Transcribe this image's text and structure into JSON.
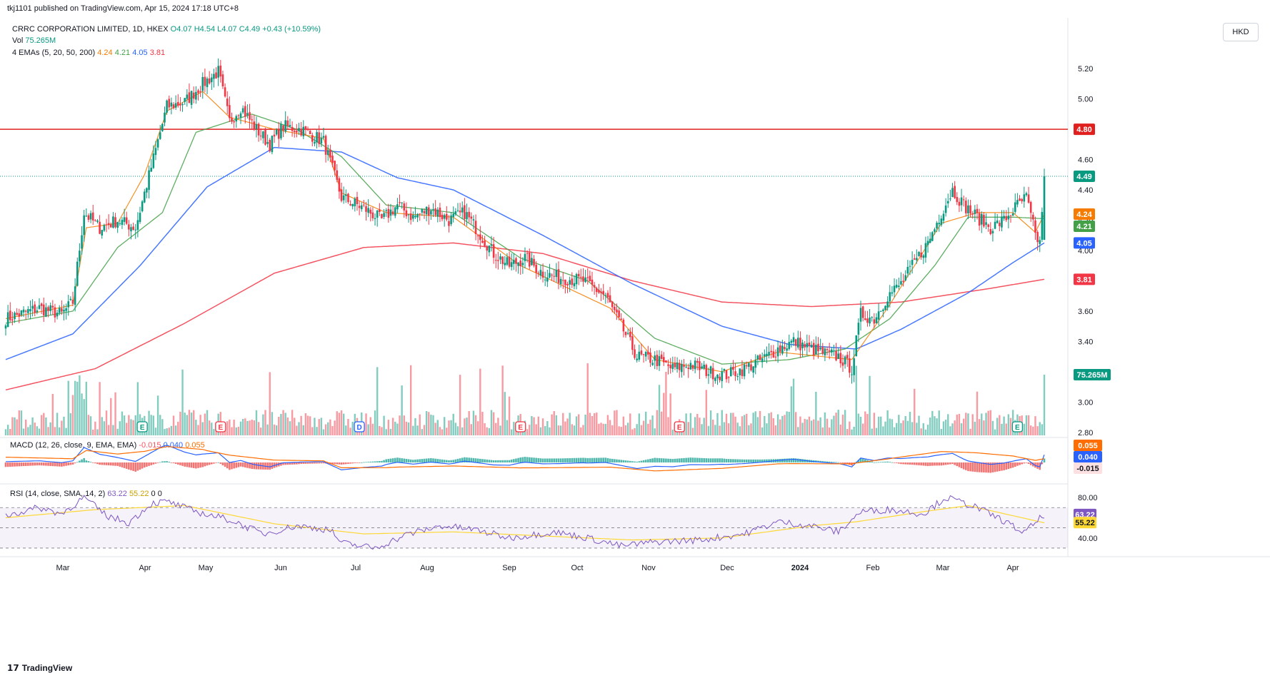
{
  "header": {
    "published": "tkj1101 published on TradingView.com, Apr 15, 2024 17:18 UTC+8",
    "symbol": "CRRC CORPORATION LIMITED, 1D, HKEX",
    "open": "O4.07",
    "high": "H4.54",
    "low": "L4.07",
    "close": "C4.49",
    "change": "+0.43 (+10.59%)",
    "vol_label": "Vol",
    "vol_value": "75.265M",
    "ema_label": "4 EMAs (5, 20, 50, 200)",
    "ema5": "4.24",
    "ema20": "4.21",
    "ema50": "4.05",
    "ema200": "3.81"
  },
  "currency_button": "HKD",
  "macd_label": {
    "title": "MACD (12, 26, close, 9, EMA, EMA)",
    "hist": "-0.015",
    "macd": "0.040",
    "signal": "0.055"
  },
  "rsi_label": {
    "title": "RSI (14, close, SMA, 14, 2)",
    "rsi": "63.22",
    "ma": "55.22",
    "extra": "0  0"
  },
  "footer": {
    "brand": "TradingView"
  },
  "colors": {
    "up": "#089981",
    "down": "#f23645",
    "ema5": "#f57c00",
    "ema20": "#43a047",
    "ema50": "#2962ff",
    "ema200": "#f23645",
    "resistance": "#e0201f",
    "rsi": "#7e57c2",
    "rsi_ma": "#fdd835",
    "macd_line": "#2962ff",
    "signal_line": "#ff6d00"
  },
  "chart_data": {
    "type": "candlestick",
    "price_axis": {
      "ticks": [
        "5.20",
        "5.00",
        "4.80",
        "4.60",
        "4.40",
        "4.20",
        "4.00",
        "3.80",
        "3.60",
        "3.40",
        "3.20",
        "3.00",
        "2.80"
      ],
      "range": [
        2.78,
        5.3
      ]
    },
    "time_axis": {
      "ticks": [
        "Mar",
        "Apr",
        "May",
        "Jun",
        "Jul",
        "Aug",
        "Sep",
        "Oct",
        "Nov",
        "Dec",
        "2024",
        "Feb",
        "Mar",
        "Apr"
      ]
    },
    "horizontal_levels": [
      {
        "value": 4.8,
        "label": "4.80"
      }
    ],
    "last_price": {
      "value": 4.49,
      "label": "4.49"
    },
    "ema_values": {
      "ema5": 4.24,
      "ema20": 4.21,
      "ema50": 4.05,
      "ema200": 3.81
    },
    "price_labels": [
      "4.80",
      "4.49",
      "4.24",
      "4.21",
      "4.05",
      "3.81"
    ],
    "volume_last": "75.265M",
    "price_anchors": [
      [
        0,
        3.55
      ],
      [
        15,
        3.62
      ],
      [
        25,
        3.58
      ],
      [
        30,
        3.66
      ],
      [
        35,
        4.25
      ],
      [
        42,
        4.15
      ],
      [
        50,
        4.2
      ],
      [
        58,
        4.15
      ],
      [
        65,
        4.55
      ],
      [
        72,
        4.95
      ],
      [
        80,
        4.98
      ],
      [
        88,
        5.1
      ],
      [
        95,
        5.18
      ],
      [
        100,
        4.85
      ],
      [
        105,
        4.95
      ],
      [
        112,
        4.8
      ],
      [
        118,
        4.7
      ],
      [
        124,
        4.82
      ],
      [
        132,
        4.8
      ],
      [
        142,
        4.72
      ],
      [
        150,
        4.35
      ],
      [
        160,
        4.28
      ],
      [
        168,
        4.2
      ],
      [
        175,
        4.3
      ],
      [
        182,
        4.22
      ],
      [
        190,
        4.28
      ],
      [
        198,
        4.2
      ],
      [
        205,
        4.25
      ],
      [
        210,
        4.15
      ],
      [
        218,
        3.98
      ],
      [
        225,
        3.9
      ],
      [
        232,
        3.95
      ],
      [
        240,
        3.85
      ],
      [
        248,
        3.82
      ],
      [
        258,
        3.8
      ],
      [
        268,
        3.7
      ],
      [
        275,
        3.5
      ],
      [
        282,
        3.3
      ],
      [
        290,
        3.28
      ],
      [
        298,
        3.22
      ],
      [
        306,
        3.25
      ],
      [
        314,
        3.2
      ],
      [
        322,
        3.18
      ],
      [
        330,
        3.22
      ],
      [
        338,
        3.28
      ],
      [
        345,
        3.35
      ],
      [
        352,
        3.4
      ],
      [
        360,
        3.35
      ],
      [
        366,
        3.32
      ],
      [
        372,
        3.3
      ],
      [
        378,
        3.22
      ],
      [
        382,
        3.58
      ],
      [
        388,
        3.55
      ],
      [
        394,
        3.7
      ],
      [
        400,
        3.78
      ],
      [
        406,
        3.92
      ],
      [
        412,
        4.05
      ],
      [
        418,
        4.25
      ],
      [
        423,
        4.4
      ],
      [
        428,
        4.3
      ],
      [
        434,
        4.22
      ],
      [
        440,
        4.15
      ],
      [
        446,
        4.2
      ],
      [
        452,
        4.3
      ],
      [
        456,
        4.35
      ],
      [
        460,
        4.1
      ],
      [
        462,
        4.05
      ],
      [
        464,
        4.49
      ]
    ],
    "ema_anchors": {
      "ema200": [
        [
          0,
          3.08
        ],
        [
          40,
          3.22
        ],
        [
          80,
          3.52
        ],
        [
          120,
          3.85
        ],
        [
          160,
          4.02
        ],
        [
          200,
          4.05
        ],
        [
          240,
          3.98
        ],
        [
          280,
          3.8
        ],
        [
          320,
          3.66
        ],
        [
          360,
          3.63
        ],
        [
          400,
          3.66
        ],
        [
          440,
          3.75
        ],
        [
          464,
          3.81
        ]
      ],
      "ema50": [
        [
          0,
          3.28
        ],
        [
          30,
          3.45
        ],
        [
          60,
          3.9
        ],
        [
          90,
          4.42
        ],
        [
          120,
          4.68
        ],
        [
          150,
          4.65
        ],
        [
          175,
          4.48
        ],
        [
          200,
          4.4
        ],
        [
          240,
          4.1
        ],
        [
          280,
          3.78
        ],
        [
          320,
          3.5
        ],
        [
          350,
          3.38
        ],
        [
          380,
          3.35
        ],
        [
          400,
          3.48
        ],
        [
          430,
          3.72
        ],
        [
          450,
          3.92
        ],
        [
          464,
          4.05
        ]
      ],
      "ema20": [
        [
          0,
          3.52
        ],
        [
          30,
          3.6
        ],
        [
          50,
          4.02
        ],
        [
          70,
          4.25
        ],
        [
          85,
          4.78
        ],
        [
          110,
          4.9
        ],
        [
          130,
          4.8
        ],
        [
          150,
          4.62
        ],
        [
          170,
          4.3
        ],
        [
          200,
          4.25
        ],
        [
          230,
          3.95
        ],
        [
          260,
          3.8
        ],
        [
          290,
          3.42
        ],
        [
          320,
          3.25
        ],
        [
          350,
          3.28
        ],
        [
          375,
          3.35
        ],
        [
          395,
          3.55
        ],
        [
          415,
          3.9
        ],
        [
          430,
          4.22
        ],
        [
          450,
          4.22
        ],
        [
          464,
          4.21
        ]
      ],
      "ema5": [
        [
          0,
          3.55
        ],
        [
          30,
          3.64
        ],
        [
          36,
          4.15
        ],
        [
          50,
          4.18
        ],
        [
          62,
          4.5
        ],
        [
          72,
          4.92
        ],
        [
          88,
          5.05
        ],
        [
          100,
          4.88
        ],
        [
          120,
          4.8
        ],
        [
          142,
          4.74
        ],
        [
          150,
          4.38
        ],
        [
          170,
          4.25
        ],
        [
          200,
          4.22
        ],
        [
          230,
          3.9
        ],
        [
          270,
          3.62
        ],
        [
          290,
          3.28
        ],
        [
          320,
          3.2
        ],
        [
          345,
          3.33
        ],
        [
          378,
          3.28
        ],
        [
          394,
          3.62
        ],
        [
          418,
          4.18
        ],
        [
          434,
          4.25
        ],
        [
          450,
          4.25
        ],
        [
          460,
          4.12
        ],
        [
          464,
          4.24
        ]
      ]
    },
    "macd_levels": {
      "macd": 0.04,
      "signal": 0.055,
      "hist": -0.015
    },
    "rsi_axis": {
      "ticks": [
        "80.00",
        "40.00"
      ],
      "band": [
        30,
        70
      ]
    },
    "rsi_last": 63.22,
    "rsi_ma_last": 55.22,
    "rsi_anchors": [
      [
        0,
        62
      ],
      [
        15,
        70
      ],
      [
        25,
        64
      ],
      [
        35,
        80
      ],
      [
        45,
        62
      ],
      [
        55,
        55
      ],
      [
        65,
        74
      ],
      [
        72,
        76
      ],
      [
        85,
        66
      ],
      [
        100,
        58
      ],
      [
        115,
        44
      ],
      [
        130,
        52
      ],
      [
        145,
        48
      ],
      [
        150,
        35
      ],
      [
        165,
        30
      ],
      [
        180,
        44
      ],
      [
        195,
        52
      ],
      [
        210,
        48
      ],
      [
        225,
        40
      ],
      [
        245,
        46
      ],
      [
        260,
        40
      ],
      [
        275,
        32
      ],
      [
        290,
        36
      ],
      [
        310,
        38
      ],
      [
        330,
        44
      ],
      [
        345,
        56
      ],
      [
        360,
        52
      ],
      [
        372,
        46
      ],
      [
        382,
        66
      ],
      [
        395,
        68
      ],
      [
        410,
        64
      ],
      [
        420,
        80
      ],
      [
        432,
        72
      ],
      [
        445,
        58
      ],
      [
        455,
        45
      ],
      [
        464,
        63
      ]
    ],
    "rsi_ma_anchors": [
      [
        0,
        60
      ],
      [
        40,
        68
      ],
      [
        80,
        72
      ],
      [
        120,
        54
      ],
      [
        160,
        44
      ],
      [
        200,
        46
      ],
      [
        240,
        42
      ],
      [
        280,
        38
      ],
      [
        320,
        40
      ],
      [
        360,
        52
      ],
      [
        380,
        56
      ],
      [
        410,
        66
      ],
      [
        430,
        72
      ],
      [
        464,
        55
      ]
    ]
  }
}
